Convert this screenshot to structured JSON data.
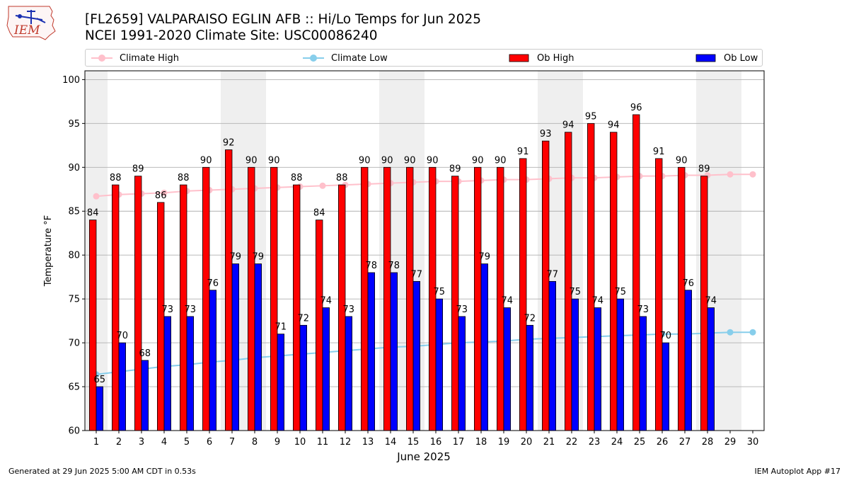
{
  "logo": {
    "text": "IEM"
  },
  "title": {
    "line1": "[FL2659] VALPARAISO EGLIN AFB :: Hi/Lo Temps for Jun 2025",
    "line2": "NCEI 1991-2020 Climate Site: USC00086240"
  },
  "legend": {
    "climate_high": "Climate High",
    "climate_low": "Climate Low",
    "ob_high": "Ob High",
    "ob_low": "Ob Low"
  },
  "footer": {
    "left": "Generated at 29 Jun 2025 5:00 AM CDT in 0.53s",
    "right": "IEM Autoplot App #17"
  },
  "colors": {
    "ob_high": "#ff0000",
    "ob_low": "#0000ff",
    "climate_high": "#ffc0cb",
    "climate_low": "#87ceeb",
    "weekend_shade": "#efefef",
    "grid": "#b0b0b0"
  },
  "chart_data": {
    "type": "bar",
    "xlabel": "June 2025",
    "ylabel": "Temperature °F",
    "ylim": [
      60,
      101
    ],
    "yticks": [
      60,
      65,
      70,
      75,
      80,
      85,
      90,
      95,
      100
    ],
    "days": [
      1,
      2,
      3,
      4,
      5,
      6,
      7,
      8,
      9,
      10,
      11,
      12,
      13,
      14,
      15,
      16,
      17,
      18,
      19,
      20,
      21,
      22,
      23,
      24,
      25,
      26,
      27,
      28,
      29,
      30
    ],
    "weekend_shaded_days": [
      1,
      7,
      8,
      14,
      15,
      21,
      22,
      28,
      29
    ],
    "grid": "horizontal",
    "legend_position": "top",
    "series": [
      {
        "name": "Ob High",
        "type": "bar",
        "values": [
          84,
          88,
          89,
          86,
          88,
          90,
          92,
          90,
          90,
          88,
          84,
          88,
          90,
          90,
          90,
          90,
          89,
          90,
          90,
          91,
          93,
          94,
          95,
          94,
          96,
          91,
          90,
          89,
          null,
          null
        ]
      },
      {
        "name": "Ob Low",
        "type": "bar",
        "values": [
          65,
          70,
          68,
          73,
          73,
          76,
          79,
          79,
          71,
          72,
          74,
          73,
          78,
          78,
          77,
          75,
          73,
          79,
          74,
          72,
          77,
          75,
          74,
          75,
          73,
          70,
          76,
          74,
          null,
          null
        ]
      },
      {
        "name": "Climate High",
        "type": "line",
        "values": [
          86.7,
          86.9,
          87.0,
          87.1,
          87.3,
          87.4,
          87.5,
          87.6,
          87.7,
          87.8,
          87.9,
          88.0,
          88.1,
          88.2,
          88.3,
          88.4,
          88.4,
          88.5,
          88.6,
          88.6,
          88.7,
          88.8,
          88.8,
          88.9,
          89.0,
          89.0,
          89.1,
          89.1,
          89.2,
          89.2
        ]
      },
      {
        "name": "Climate Low",
        "type": "line",
        "values": [
          66.4,
          66.7,
          67.0,
          67.3,
          67.5,
          67.8,
          68.0,
          68.3,
          68.5,
          68.7,
          68.9,
          69.1,
          69.3,
          69.5,
          69.6,
          69.8,
          70.0,
          70.1,
          70.2,
          70.4,
          70.5,
          70.6,
          70.7,
          70.8,
          70.9,
          71.0,
          71.0,
          71.1,
          71.2,
          71.2
        ]
      }
    ]
  }
}
